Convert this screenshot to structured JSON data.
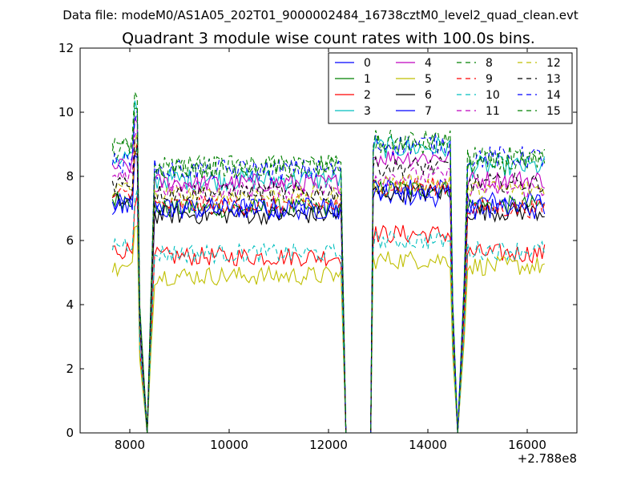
{
  "chart_data": {
    "type": "line",
    "suptitle": "Data file: modeM0/AS1A05_202T01_9000002484_16738cztM0_level2_quad_clean.evt",
    "title": "Quadrant 3 module wise count rates with 100.0s bins.",
    "xlabel": "",
    "ylabel": "",
    "x_offset_label": "+2.788e8",
    "xlim": [
      7000,
      17000
    ],
    "ylim": [
      0,
      12
    ],
    "x_ticks": [
      8000,
      10000,
      12000,
      14000,
      16000
    ],
    "y_ticks": [
      0,
      2,
      4,
      6,
      8,
      10,
      12
    ],
    "grid": false,
    "legend_position": "top-right",
    "legend_columns": 4,
    "segments": [
      {
        "x_start": 7650,
        "x_end": 8150
      },
      {
        "x_start": 8500,
        "x_end": 12250
      },
      {
        "x_start": 12900,
        "x_end": 14450
      },
      {
        "x_start": 14800,
        "x_end": 16350
      }
    ],
    "x_gaps": [
      {
        "x_from": 8150,
        "x_to": 8500,
        "min_x": 8350,
        "min_y": 0
      },
      {
        "x_from": 12250,
        "x_to": 12900,
        "flat_from": 12350,
        "flat_to": 12850,
        "min_y": 0
      },
      {
        "x_from": 14450,
        "x_to": 14800,
        "min_x": 14600,
        "min_y": 0
      }
    ],
    "series": [
      {
        "name": "0",
        "color": "#0000ff",
        "dash": false,
        "levels": [
          7.1,
          7.0,
          7.4,
          7.2
        ],
        "noise": 0.35
      },
      {
        "name": "1",
        "color": "#008000",
        "dash": false,
        "levels": [
          7.3,
          7.0,
          7.6,
          7.1
        ],
        "noise": 0.3
      },
      {
        "name": "2",
        "color": "#ff0000",
        "dash": false,
        "levels": [
          5.7,
          5.5,
          6.2,
          5.6
        ],
        "noise": 0.3
      },
      {
        "name": "3",
        "color": "#00bfbf",
        "dash": false,
        "levels": [
          8.6,
          7.9,
          8.9,
          8.3
        ],
        "noise": 0.35
      },
      {
        "name": "4",
        "color": "#bf00bf",
        "dash": false,
        "levels": [
          8.3,
          7.8,
          8.6,
          7.9
        ],
        "noise": 0.3
      },
      {
        "name": "5",
        "color": "#bfbf00",
        "dash": false,
        "levels": [
          5.1,
          4.9,
          5.4,
          5.2
        ],
        "noise": 0.3
      },
      {
        "name": "6",
        "color": "#000000",
        "dash": false,
        "levels": [
          7.2,
          6.8,
          7.5,
          6.9
        ],
        "noise": 0.3
      },
      {
        "name": "7",
        "color": "#0000ff",
        "dash": false,
        "levels": [
          7.0,
          7.0,
          7.6,
          7.0
        ],
        "noise": 0.35
      },
      {
        "name": "8",
        "color": "#008000",
        "dash": true,
        "levels": [
          8.8,
          8.3,
          9.0,
          8.6
        ],
        "noise": 0.35
      },
      {
        "name": "9",
        "color": "#ff0000",
        "dash": true,
        "levels": [
          7.4,
          7.1,
          7.7,
          7.0
        ],
        "noise": 0.3
      },
      {
        "name": "10",
        "color": "#00bfbf",
        "dash": true,
        "levels": [
          5.9,
          5.6,
          6.0,
          5.7
        ],
        "noise": 0.3
      },
      {
        "name": "11",
        "color": "#bf00bf",
        "dash": true,
        "levels": [
          7.9,
          7.6,
          8.0,
          7.6
        ],
        "noise": 0.3
      },
      {
        "name": "12",
        "color": "#bfbf00",
        "dash": true,
        "levels": [
          7.6,
          7.4,
          7.8,
          7.6
        ],
        "noise": 0.3
      },
      {
        "name": "13",
        "color": "#000000",
        "dash": true,
        "levels": [
          7.8,
          7.5,
          8.3,
          7.8
        ],
        "noise": 0.3
      },
      {
        "name": "14",
        "color": "#0000ff",
        "dash": true,
        "levels": [
          8.4,
          8.2,
          9.0,
          8.6
        ],
        "noise": 0.35
      },
      {
        "name": "15",
        "color": "#008000",
        "dash": true,
        "levels": [
          8.9,
          8.3,
          9.1,
          8.4
        ],
        "noise": 0.35
      }
    ]
  }
}
